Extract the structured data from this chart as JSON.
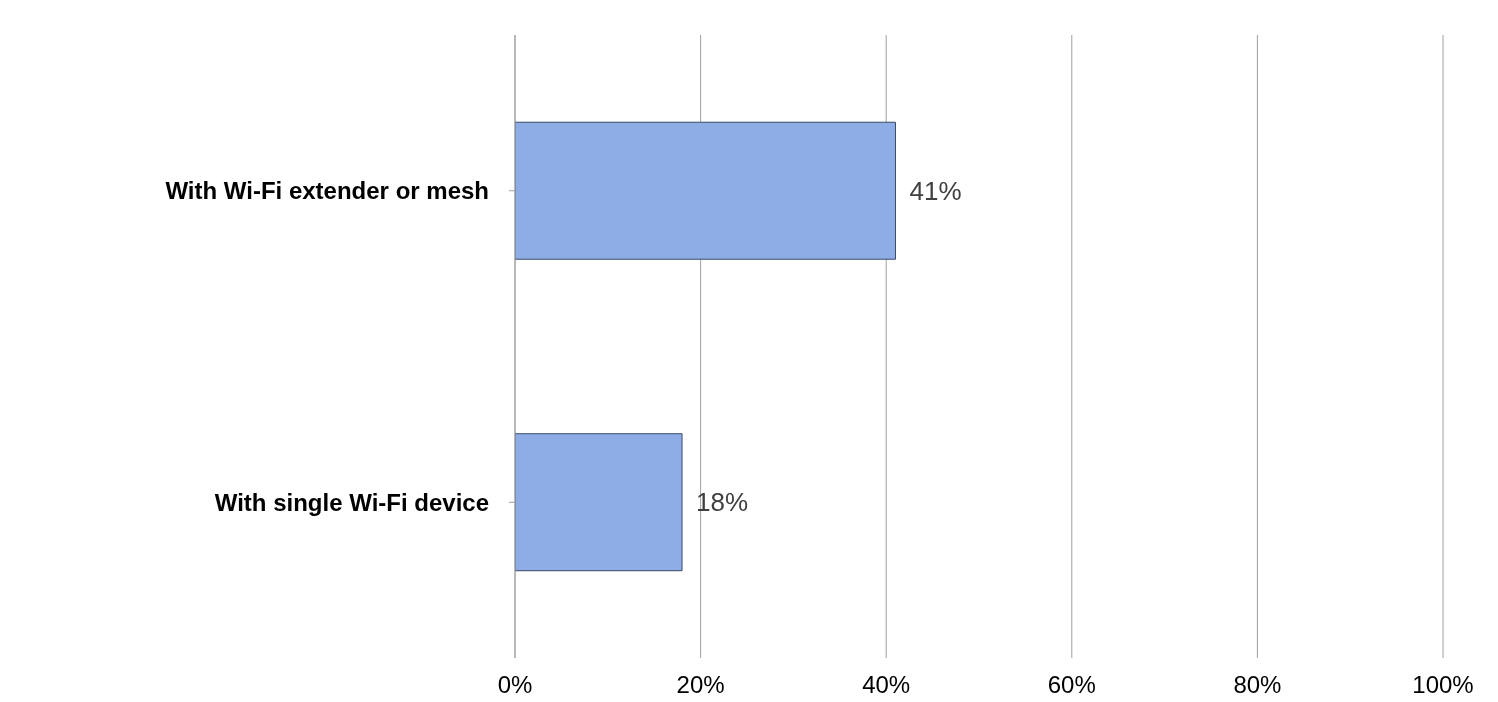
{
  "chart_data": {
    "type": "bar",
    "orientation": "horizontal",
    "categories": [
      "With Wi-Fi extender or mesh",
      "With single Wi-Fi device"
    ],
    "values": [
      41,
      18
    ],
    "value_labels": [
      "41%",
      "18%"
    ],
    "color": "#8eade6",
    "xlim": [
      0,
      100
    ],
    "xticks": [
      {
        "value": 0,
        "label": "0%"
      },
      {
        "value": 20,
        "label": "20%"
      },
      {
        "value": 40,
        "label": "40%"
      },
      {
        "value": 60,
        "label": "60%"
      },
      {
        "value": 80,
        "label": "80%"
      },
      {
        "value": 100,
        "label": "100%"
      }
    ],
    "grid": "x",
    "legend": false
  }
}
